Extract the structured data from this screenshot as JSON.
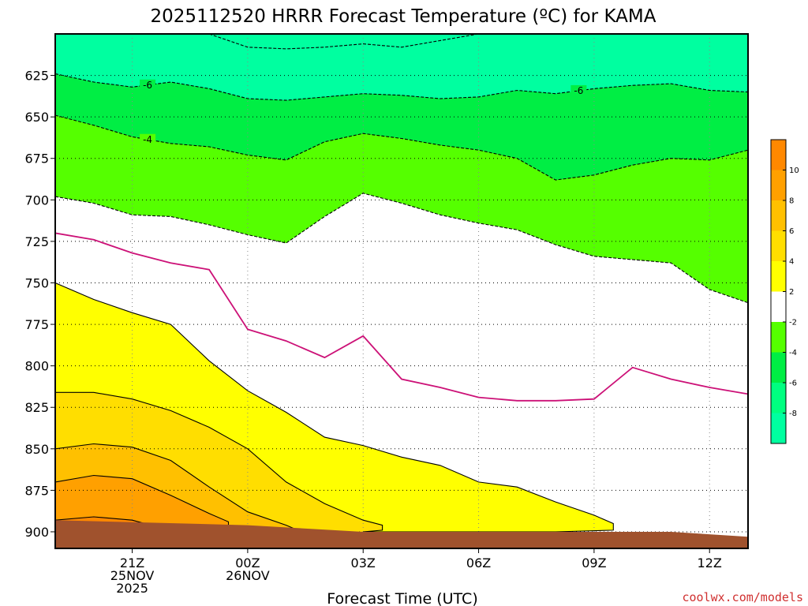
{
  "title": "2025112520 HRRR Forecast Temperature (ºC) for KAMA",
  "credit": "coolwx.com/models",
  "colors": {
    "t_le_m8": "#00ffa0",
    "t_m8_m6": "#00ff80",
    "t_m6_m4": "#00ee44",
    "t_m4_m2": "#55ff00",
    "t_m2_p2": "#ffffff",
    "t_p2_p4": "#ffff00",
    "t_p4_p6": "#ffde00",
    "t_p6_p8": "#ffc000",
    "t_p8_p10": "#ffa000",
    "t_ge_10": "#ff8800",
    "ground": "#a0522d",
    "freezing_line": "#cc1177"
  },
  "chart_data": {
    "type": "contour",
    "title": "2025112520 HRRR Forecast Temperature (ºC) for KAMA",
    "xlabel": "Forecast Time (UTC)",
    "ylabel": "",
    "x_unit": "forecast hour",
    "y_unit": "hPa",
    "xlim": [
      -1,
      17
    ],
    "ylim": [
      600,
      910
    ],
    "y_ticks": [
      625,
      650,
      675,
      700,
      725,
      750,
      775,
      800,
      825,
      850,
      875,
      900
    ],
    "x_ticks": [
      {
        "hour": 1,
        "lines": [
          "21Z",
          "25NOV",
          "2025"
        ]
      },
      {
        "hour": 4,
        "lines": [
          "00Z",
          "26NOV"
        ]
      },
      {
        "hour": 7,
        "lines": [
          "03Z"
        ]
      },
      {
        "hour": 10,
        "lines": [
          "06Z"
        ]
      },
      {
        "hour": 13,
        "lines": [
          "09Z"
        ]
      },
      {
        "hour": 16,
        "lines": [
          "12Z"
        ]
      }
    ],
    "grid": true,
    "colorbar": {
      "labels": [
        "10",
        "8",
        "6",
        "4",
        "2",
        "-2",
        "-4",
        "-6",
        "-8"
      ],
      "colors": [
        "#ff8800",
        "#ffa000",
        "#ffc000",
        "#ffde00",
        "#ffff00",
        "#ffffff",
        "#55ff00",
        "#00ee44",
        "#00ff80",
        "#00ffa0"
      ]
    },
    "contours": [
      {
        "level": -8,
        "fill": "#00ffa0",
        "label": "",
        "points": [
          [
            3.0,
            600
          ],
          [
            4.0,
            608
          ],
          [
            5.0,
            609
          ],
          [
            6.0,
            608
          ],
          [
            7.0,
            606
          ],
          [
            8.0,
            608
          ],
          [
            9.0,
            604
          ],
          [
            10.0,
            600
          ]
        ]
      },
      {
        "level": -6,
        "fill": "#00ee44",
        "label": "-6",
        "points": [
          [
            -1.0,
            624
          ],
          [
            0.0,
            629
          ],
          [
            1.0,
            632
          ],
          [
            2.0,
            629
          ],
          [
            3.0,
            633
          ],
          [
            4.0,
            639
          ],
          [
            5.0,
            640
          ],
          [
            6.0,
            638
          ],
          [
            7.0,
            636
          ],
          [
            8.0,
            637
          ],
          [
            9.0,
            639
          ],
          [
            10.0,
            638
          ],
          [
            11.0,
            634
          ],
          [
            12.0,
            636
          ],
          [
            13.0,
            633
          ],
          [
            14.0,
            631
          ],
          [
            15.0,
            630
          ],
          [
            16.0,
            634
          ],
          [
            17.0,
            635
          ]
        ]
      },
      {
        "level": -4,
        "fill": "#55ff00",
        "label": "-4",
        "points": [
          [
            -1.0,
            649
          ],
          [
            0.0,
            655
          ],
          [
            1.0,
            662
          ],
          [
            2.0,
            666
          ],
          [
            3.0,
            668
          ],
          [
            4.0,
            673
          ],
          [
            5.0,
            676
          ],
          [
            6.0,
            665
          ],
          [
            7.0,
            660
          ],
          [
            8.0,
            663
          ],
          [
            9.0,
            667
          ],
          [
            10.0,
            670
          ],
          [
            11.0,
            675
          ],
          [
            12.0,
            688
          ],
          [
            13.0,
            685
          ],
          [
            14.0,
            679
          ],
          [
            15.0,
            675
          ],
          [
            16.0,
            676
          ],
          [
            17.0,
            670
          ]
        ]
      },
      {
        "level": -2,
        "fill": "#ffffff",
        "label": "",
        "points": [
          [
            -1.0,
            698
          ],
          [
            0.0,
            702
          ],
          [
            1.0,
            709
          ],
          [
            2.0,
            710
          ],
          [
            3.0,
            715
          ],
          [
            4.0,
            721
          ],
          [
            5.0,
            726
          ],
          [
            6.0,
            710
          ],
          [
            7.0,
            696
          ],
          [
            8.0,
            702
          ],
          [
            9.0,
            709
          ],
          [
            10.0,
            714
          ],
          [
            11.0,
            718
          ],
          [
            12.0,
            727
          ],
          [
            13.0,
            734
          ],
          [
            14.0,
            736
          ],
          [
            15.0,
            738
          ],
          [
            16.0,
            754
          ],
          [
            17.0,
            762
          ]
        ]
      },
      {
        "level": 0,
        "fill": "none",
        "label": "",
        "points": [
          [
            -1.0,
            720
          ],
          [
            0.0,
            724
          ],
          [
            1.0,
            732
          ],
          [
            2.0,
            738
          ],
          [
            3.0,
            742
          ],
          [
            4.0,
            778
          ],
          [
            5.0,
            785
          ],
          [
            6.0,
            795
          ],
          [
            7.0,
            782
          ],
          [
            8.0,
            808
          ],
          [
            9.0,
            813
          ],
          [
            10.0,
            819
          ],
          [
            11.0,
            821
          ],
          [
            12.0,
            821
          ],
          [
            13.0,
            820
          ],
          [
            14.0,
            801
          ],
          [
            15.0,
            808
          ],
          [
            16.0,
            813
          ],
          [
            17.0,
            817
          ]
        ]
      },
      {
        "level": 2,
        "fill": "#ffff00",
        "label": "",
        "points": [
          [
            -1.0,
            750
          ],
          [
            0.0,
            760
          ],
          [
            1.0,
            768
          ],
          [
            2.0,
            775
          ],
          [
            3.0,
            797
          ],
          [
            4.0,
            815
          ],
          [
            5.0,
            828
          ],
          [
            6.0,
            843
          ],
          [
            7.0,
            848
          ],
          [
            8.0,
            855
          ],
          [
            9.0,
            860
          ],
          [
            10.0,
            870
          ],
          [
            11.0,
            873
          ],
          [
            12.0,
            882
          ],
          [
            13.0,
            890
          ],
          [
            13.5,
            895
          ],
          [
            13.5,
            899
          ],
          [
            12.0,
            900
          ],
          [
            10.0,
            900
          ],
          [
            7.0,
            900
          ]
        ]
      },
      {
        "level": 4,
        "fill": "#ffde00",
        "label": "",
        "points": [
          [
            -1.0,
            816
          ],
          [
            0.0,
            816
          ],
          [
            1.0,
            820
          ],
          [
            2.0,
            827
          ],
          [
            3.0,
            837
          ],
          [
            4.0,
            850
          ],
          [
            5.0,
            870
          ],
          [
            6.0,
            883
          ],
          [
            7.0,
            893
          ],
          [
            7.5,
            896
          ],
          [
            7.5,
            899
          ],
          [
            7.0,
            900
          ]
        ]
      },
      {
        "level": 6,
        "fill": "#ffc000",
        "label": "",
        "points": [
          [
            -1.0,
            850
          ],
          [
            0.0,
            847
          ],
          [
            1.0,
            849
          ],
          [
            2.0,
            857
          ],
          [
            3.0,
            873
          ],
          [
            4.0,
            888
          ],
          [
            5.0,
            896
          ],
          [
            5.3,
            899
          ],
          [
            5.0,
            900
          ]
        ]
      },
      {
        "level": 8,
        "fill": "#ffa000",
        "label": "",
        "points": [
          [
            -1.0,
            870
          ],
          [
            0.0,
            866
          ],
          [
            1.0,
            868
          ],
          [
            2.0,
            878
          ],
          [
            3.0,
            889
          ],
          [
            3.5,
            894
          ],
          [
            3.5,
            899
          ],
          [
            3.0,
            900
          ]
        ]
      },
      {
        "level": 10,
        "fill": "#ff8800",
        "label": "",
        "points": [
          [
            -1.0,
            893
          ],
          [
            0.0,
            891
          ],
          [
            1.0,
            893
          ],
          [
            1.8,
            898
          ],
          [
            1.8,
            900
          ]
        ]
      }
    ],
    "ground_surface": [
      [
        -1.0,
        893
      ],
      [
        4.0,
        896
      ],
      [
        7.0,
        900
      ],
      [
        13.0,
        900
      ],
      [
        15.0,
        900
      ],
      [
        17.0,
        903
      ]
    ]
  }
}
